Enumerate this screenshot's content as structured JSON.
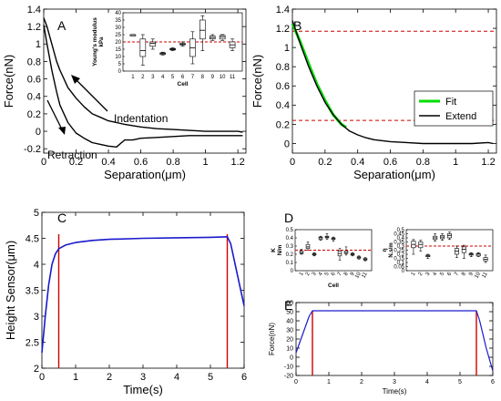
{
  "chart_data": [
    {
      "panel": "A",
      "type": "line",
      "xlabel": "Separation(μm)",
      "ylabel": "Force(nN)",
      "xlim": [
        0,
        1.25
      ],
      "ylim": [
        -0.25,
        1.4
      ],
      "xticks": [
        "0",
        "0.2",
        "0.4",
        "0.6",
        "0.8",
        "1",
        "1.2"
      ],
      "yticks": [
        "-0.2",
        "0",
        "0.2",
        "0.4",
        "0.6",
        "0.8",
        "1",
        "1.2",
        "1.4"
      ],
      "annotations": [
        "Indentation",
        "Retraction"
      ],
      "series": [
        {
          "x": [
            0,
            0.02,
            0.05,
            0.08,
            0.1,
            0.15,
            0.2,
            0.25,
            0.3,
            0.35,
            0.4,
            0.45,
            0.5,
            0.6,
            0.7,
            0.8,
            0.9,
            1.0,
            1.1,
            1.2,
            1.23
          ],
          "y": [
            1.3,
            1.2,
            1.0,
            0.8,
            0.7,
            0.5,
            0.38,
            0.28,
            0.2,
            0.16,
            0.12,
            0.1,
            0.08,
            0.05,
            0.03,
            0.02,
            0.01,
            0.0,
            0.0,
            0.0,
            -0.01
          ]
        },
        {
          "x": [
            0,
            0.02,
            0.05,
            0.08,
            0.1,
            0.15,
            0.2,
            0.25,
            0.3,
            0.35,
            0.4,
            0.45,
            0.5,
            0.55,
            0.6,
            0.7,
            0.8,
            0.9,
            1.0,
            1.1,
            1.2,
            1.23
          ],
          "y": [
            1.22,
            1.0,
            0.7,
            0.45,
            0.3,
            0.1,
            -0.02,
            -0.08,
            -0.13,
            -0.15,
            -0.17,
            -0.18,
            -0.1,
            -0.1,
            -0.08,
            -0.07,
            -0.06,
            -0.05,
            -0.05,
            -0.05,
            -0.05,
            -0.05
          ]
        }
      ]
    },
    {
      "panel": "A-inset",
      "type": "box",
      "xlabel": "Cell",
      "ylabel": "Young's modulus kPa",
      "ylim": [
        0,
        40
      ],
      "yticks": [
        "0",
        "5",
        "10",
        "15",
        "20",
        "25",
        "30",
        "35",
        "40"
      ],
      "categories": [
        "1",
        "2",
        "3",
        "4",
        "5",
        "6",
        "7",
        "8",
        "9",
        "10",
        "11"
      ],
      "reference_line": 20,
      "boxes": [
        {
          "min": 24,
          "q1": 24,
          "median": 25,
          "q3": 25,
          "max": 25
        },
        {
          "min": 4,
          "q1": 10,
          "median": 14,
          "q3": 22,
          "max": 25
        },
        {
          "min": 15,
          "q1": 17,
          "median": 19,
          "q3": 20,
          "max": 22
        },
        {
          "min": 11,
          "q1": 11.5,
          "median": 12,
          "q3": 12.5,
          "max": 13
        },
        {
          "min": 14,
          "q1": 14.5,
          "median": 15,
          "q3": 15.5,
          "max": 16
        },
        {
          "min": 17,
          "q1": 18,
          "median": 18.5,
          "q3": 19,
          "max": 20
        },
        {
          "min": 5,
          "q1": 10,
          "median": 16,
          "q3": 22,
          "max": 27
        },
        {
          "min": 14,
          "q1": 22,
          "median": 28,
          "q3": 35,
          "max": 38
        },
        {
          "min": 21,
          "q1": 22,
          "median": 23,
          "q3": 24,
          "max": 25
        },
        {
          "min": 21,
          "q1": 22,
          "median": 23.5,
          "q3": 24.5,
          "max": 25
        },
        {
          "min": 14,
          "q1": 16,
          "median": 18,
          "q3": 20,
          "max": 22
        }
      ]
    },
    {
      "panel": "B",
      "type": "line",
      "xlabel": "Separation(μm)",
      "ylabel": "Force(nN)",
      "xlim": [
        0,
        1.25
      ],
      "ylim": [
        -0.1,
        1.4
      ],
      "xticks": [
        "0",
        "0.2",
        "0.4",
        "0.6",
        "0.8",
        "1",
        "1.2"
      ],
      "yticks": [
        "0",
        "0.2",
        "0.4",
        "0.6",
        "0.8",
        "1",
        "1.2",
        "1.4"
      ],
      "legend_position": "middle-right",
      "reference_lines": [
        1.17,
        0.24
      ],
      "series": [
        {
          "name": "Fit",
          "x": [
            0,
            0.05,
            0.1,
            0.15,
            0.2,
            0.25,
            0.3,
            0.33
          ],
          "y": [
            1.25,
            1.05,
            0.83,
            0.62,
            0.45,
            0.3,
            0.2,
            0.17
          ]
        },
        {
          "name": "Extend",
          "x": [
            0,
            0.02,
            0.05,
            0.1,
            0.15,
            0.2,
            0.25,
            0.3,
            0.35,
            0.4,
            0.45,
            0.5,
            0.6,
            0.7,
            0.8,
            0.9,
            1.0,
            1.1,
            1.2,
            1.23
          ],
          "y": [
            1.28,
            1.18,
            1.03,
            0.8,
            0.6,
            0.43,
            0.3,
            0.2,
            0.13,
            0.09,
            0.06,
            0.04,
            0.02,
            0.01,
            0.0,
            0.0,
            0.0,
            0.0,
            0.01,
            0.0
          ]
        }
      ]
    },
    {
      "panel": "C",
      "type": "line",
      "xlabel": "Time(s)",
      "ylabel": "Height Sensor(μm)",
      "xlim": [
        0,
        6
      ],
      "ylim": [
        2,
        5
      ],
      "xticks": [
        "0",
        "1",
        "2",
        "3",
        "4",
        "5",
        "6"
      ],
      "yticks": [
        "2",
        "2.5",
        "3",
        "3.5",
        "4",
        "4.5",
        "5"
      ],
      "vertical_lines": [
        0.5,
        5.5
      ],
      "series": [
        {
          "x": [
            0,
            0.1,
            0.2,
            0.3,
            0.4,
            0.5,
            0.7,
            1.0,
            1.5,
            2.0,
            3.0,
            4.0,
            5.0,
            5.5,
            5.6,
            5.7,
            5.8,
            6.0
          ],
          "y": [
            2.3,
            3.0,
            3.6,
            4.0,
            4.2,
            4.3,
            4.37,
            4.42,
            4.46,
            4.48,
            4.5,
            4.51,
            4.52,
            4.53,
            4.4,
            4.1,
            3.8,
            3.2
          ]
        }
      ]
    },
    {
      "panel": "D-left",
      "type": "box",
      "xlabel": "Cell",
      "ylabel": "K N/m",
      "ylim": [
        0,
        0.5
      ],
      "yticks": [
        "0",
        "0.1",
        "0.2",
        "0.3",
        "0.4",
        "0.5"
      ],
      "categories": [
        "1",
        "2",
        "3",
        "4",
        "5",
        "6",
        "7",
        "8",
        "9",
        "10",
        "11"
      ],
      "reference_line": 0.25,
      "boxes": [
        {
          "min": 0.2,
          "q1": 0.21,
          "median": 0.22,
          "q3": 0.24,
          "max": 0.26
        },
        {
          "min": 0.25,
          "q1": 0.27,
          "median": 0.29,
          "q3": 0.32,
          "max": 0.35
        },
        {
          "min": 0.18,
          "q1": 0.19,
          "median": 0.2,
          "q3": 0.21,
          "max": 0.22
        },
        {
          "min": 0.37,
          "q1": 0.38,
          "median": 0.4,
          "q3": 0.41,
          "max": 0.42
        },
        {
          "min": 0.38,
          "q1": 0.4,
          "median": 0.41,
          "q3": 0.42,
          "max": 0.45
        },
        {
          "min": 0.36,
          "q1": 0.38,
          "median": 0.39,
          "q3": 0.4,
          "max": 0.41
        },
        {
          "min": 0.13,
          "q1": 0.18,
          "median": 0.21,
          "q3": 0.24,
          "max": 0.27
        },
        {
          "min": 0.19,
          "q1": 0.21,
          "median": 0.22,
          "q3": 0.24,
          "max": 0.29
        },
        {
          "min": 0.18,
          "q1": 0.19,
          "median": 0.2,
          "q3": 0.21,
          "max": 0.22
        },
        {
          "min": 0.14,
          "q1": 0.15,
          "median": 0.16,
          "q3": 0.17,
          "max": 0.18
        },
        {
          "min": 0.12,
          "q1": 0.13,
          "median": 0.14,
          "q3": 0.15,
          "max": 0.16
        }
      ]
    },
    {
      "panel": "D-right",
      "type": "box",
      "xlabel": "",
      "ylabel": "η N.s/m",
      "ylim": [
        0,
        0.5
      ],
      "yticks": [
        "0",
        "0.05",
        "0.1",
        "0.15",
        "0.2",
        "0.25",
        "0.3",
        "0.35",
        "0.4",
        "0.45",
        "0.5"
      ],
      "categories": [
        "1",
        "2",
        "3",
        "4",
        "5",
        "6",
        "7",
        "8",
        "9",
        "10",
        "11"
      ],
      "reference_line": 0.3,
      "boxes": [
        {
          "min": 0.2,
          "q1": 0.28,
          "median": 0.32,
          "q3": 0.36,
          "max": 0.38
        },
        {
          "min": 0.24,
          "q1": 0.28,
          "median": 0.32,
          "q3": 0.35,
          "max": 0.37
        },
        {
          "min": 0.15,
          "q1": 0.17,
          "median": 0.18,
          "q3": 0.19,
          "max": 0.2
        },
        {
          "min": 0.36,
          "q1": 0.38,
          "median": 0.4,
          "q3": 0.42,
          "max": 0.45
        },
        {
          "min": 0.37,
          "q1": 0.39,
          "median": 0.41,
          "q3": 0.43,
          "max": 0.45
        },
        {
          "min": 0.38,
          "q1": 0.4,
          "median": 0.43,
          "q3": 0.45,
          "max": 0.47
        },
        {
          "min": 0.16,
          "q1": 0.2,
          "median": 0.24,
          "q3": 0.27,
          "max": 0.3
        },
        {
          "min": 0.15,
          "q1": 0.22,
          "median": 0.26,
          "q3": 0.29,
          "max": 0.31
        },
        {
          "min": 0.17,
          "q1": 0.19,
          "median": 0.2,
          "q3": 0.21,
          "max": 0.22
        },
        {
          "min": 0.17,
          "q1": 0.18,
          "median": 0.2,
          "q3": 0.21,
          "max": 0.22
        },
        {
          "min": 0.1,
          "q1": 0.12,
          "median": 0.14,
          "q3": 0.16,
          "max": 0.19
        }
      ]
    },
    {
      "panel": "E",
      "type": "line",
      "xlabel": "Time(s)",
      "ylabel": "Force(nN)",
      "xlim": [
        0,
        6
      ],
      "ylim": [
        -20,
        60
      ],
      "xticks": [
        "0",
        "1",
        "2",
        "3",
        "4",
        "5",
        "6"
      ],
      "yticks": [
        "-20",
        "-10",
        "0",
        "10",
        "20",
        "30",
        "40",
        "50",
        "60"
      ],
      "vertical_lines": [
        0.5,
        5.5
      ],
      "series": [
        {
          "x": [
            0,
            0.1,
            0.2,
            0.3,
            0.4,
            0.5,
            1,
            2,
            3,
            4,
            5,
            5.5,
            5.6,
            5.7,
            5.8,
            6.0
          ],
          "y": [
            5,
            15,
            25,
            35,
            45,
            51,
            51,
            51,
            51,
            51,
            51,
            51,
            40,
            25,
            10,
            -15
          ]
        }
      ]
    }
  ],
  "colors": {
    "curve": "#000000",
    "fit": "#00dd00",
    "reference": "#cc0000",
    "blue_curve": "#1a1acc",
    "marker_line": "#cc0000"
  }
}
